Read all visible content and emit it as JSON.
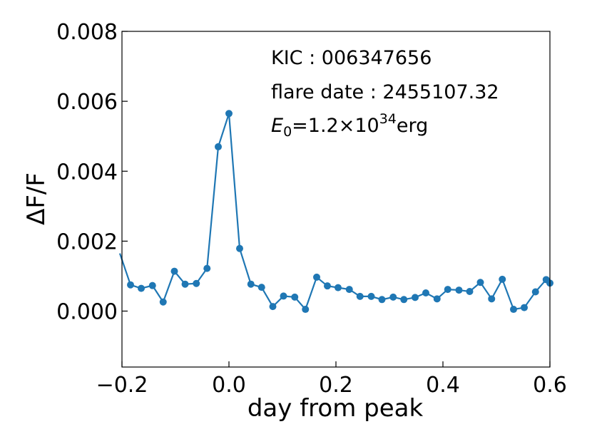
{
  "chart_data": {
    "type": "line",
    "title": "",
    "xlabel": "day from peak",
    "ylabel": "ΔF/F",
    "xlim": [
      -0.2,
      0.6
    ],
    "ylim": [
      -0.0016,
      0.008
    ],
    "x_ticks": [
      -0.2,
      0.0,
      0.2,
      0.4,
      0.6
    ],
    "x_tick_labels": [
      "−0.2",
      "0.0",
      "0.2",
      "0.4",
      "0.6"
    ],
    "y_ticks": [
      0.0,
      0.002,
      0.004,
      0.006,
      0.008
    ],
    "y_tick_labels": [
      "0.000",
      "0.002",
      "0.004",
      "0.006",
      "0.008"
    ],
    "grid": false,
    "series": [
      {
        "color": "#1f77b4",
        "marker": "circle",
        "x": [
          -0.204,
          -0.184,
          -0.164,
          -0.143,
          -0.123,
          -0.102,
          -0.082,
          -0.061,
          -0.041,
          -0.02,
          0.0,
          0.02,
          0.041,
          0.061,
          0.082,
          0.102,
          0.123,
          0.143,
          0.164,
          0.184,
          0.204,
          0.225,
          0.245,
          0.266,
          0.286,
          0.307,
          0.327,
          0.348,
          0.368,
          0.389,
          0.409,
          0.43,
          0.45,
          0.47,
          0.491,
          0.511,
          0.532,
          0.552,
          0.573,
          0.593,
          0.6
        ],
        "y": [
          0.00165,
          0.00075,
          0.00065,
          0.00073,
          0.00026,
          0.00114,
          0.00077,
          0.00079,
          0.00122,
          0.0047,
          0.00565,
          0.00179,
          0.00077,
          0.00068,
          0.00013,
          0.00043,
          0.0004,
          5e-05,
          0.00097,
          0.00072,
          0.00067,
          0.00062,
          0.00042,
          0.00042,
          0.00033,
          0.0004,
          0.00033,
          0.00039,
          0.00052,
          0.00035,
          0.00062,
          0.0006,
          0.00056,
          0.00082,
          0.00035,
          0.00091,
          5e-05,
          0.0001,
          0.00055,
          0.0009,
          0.0008
        ]
      }
    ],
    "annotations": {
      "kic": "KIC : 006347656",
      "flare_date": "flare date : 2455107.32",
      "energy_symbol": "E",
      "energy_subscript": "0",
      "energy_value": "=1.2×10",
      "energy_exponent": "34",
      "energy_unit": "erg"
    }
  }
}
